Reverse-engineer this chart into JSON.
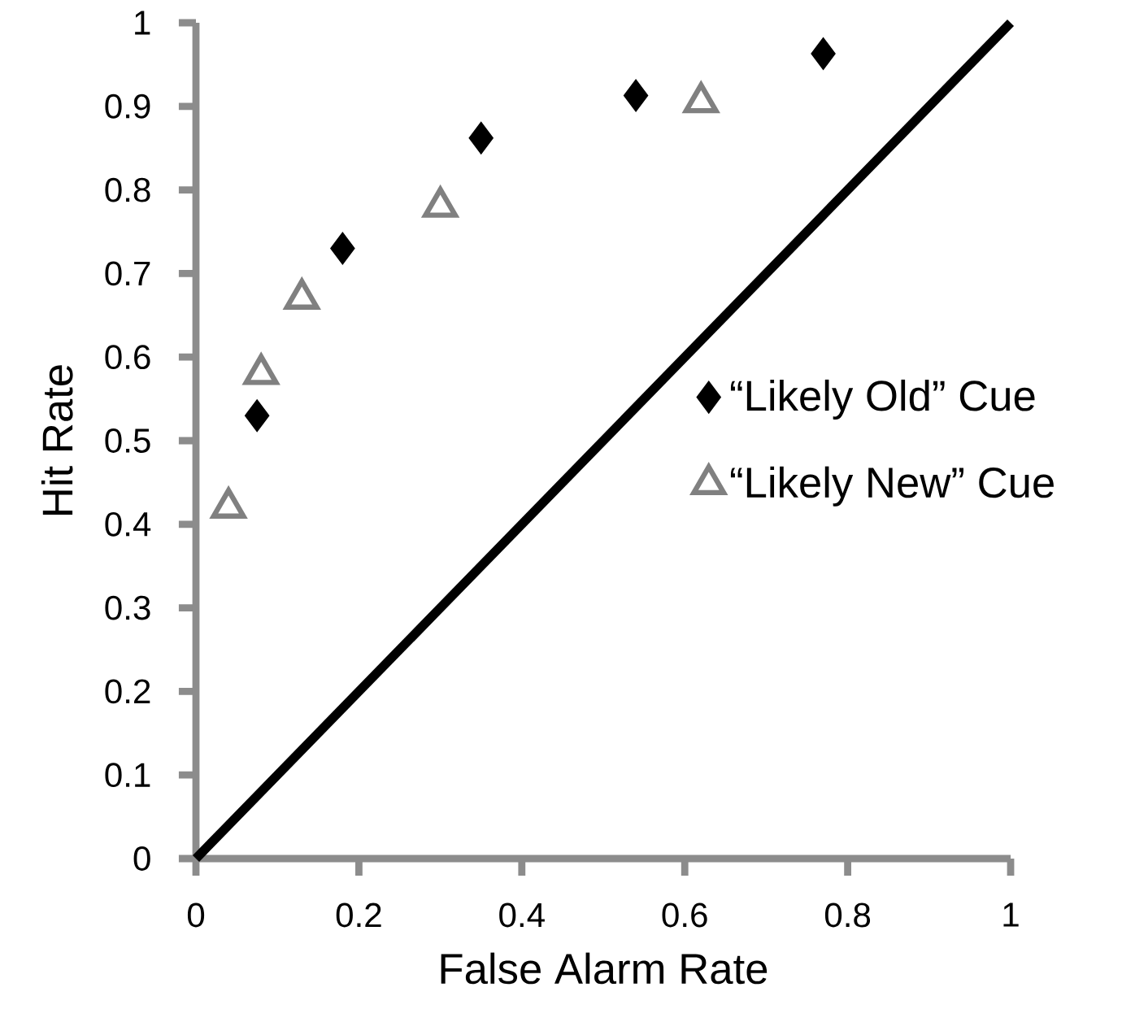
{
  "chart_data": {
    "type": "scatter",
    "xlabel": "False Alarm Rate",
    "ylabel": "Hit Rate",
    "xlim": [
      0,
      1
    ],
    "ylim": [
      0,
      1
    ],
    "xticks": [
      0,
      0.2,
      0.4,
      0.6,
      0.8,
      1
    ],
    "yticks": [
      0,
      0.1,
      0.2,
      0.3,
      0.4,
      0.5,
      0.6,
      0.7,
      0.8,
      0.9,
      1
    ],
    "grid": false,
    "legend": "right",
    "series": [
      {
        "name": "“Likely Old” Cue",
        "color": "#000000",
        "marker": "diamond",
        "x": [
          0.075,
          0.18,
          0.35,
          0.54,
          0.77
        ],
        "values": [
          0.53,
          0.73,
          0.862,
          0.913,
          0.963
        ]
      },
      {
        "name": "“Likely New” Cue",
        "color": "#808080",
        "marker": "triangle",
        "x": [
          0.04,
          0.08,
          0.13,
          0.3,
          0.62
        ],
        "values": [
          0.42,
          0.58,
          0.67,
          0.78,
          0.905
        ]
      },
      {
        "type": "line",
        "color": "#000000",
        "marker": "none",
        "x": [
          0,
          1
        ],
        "values": [
          0,
          1
        ]
      }
    ]
  }
}
